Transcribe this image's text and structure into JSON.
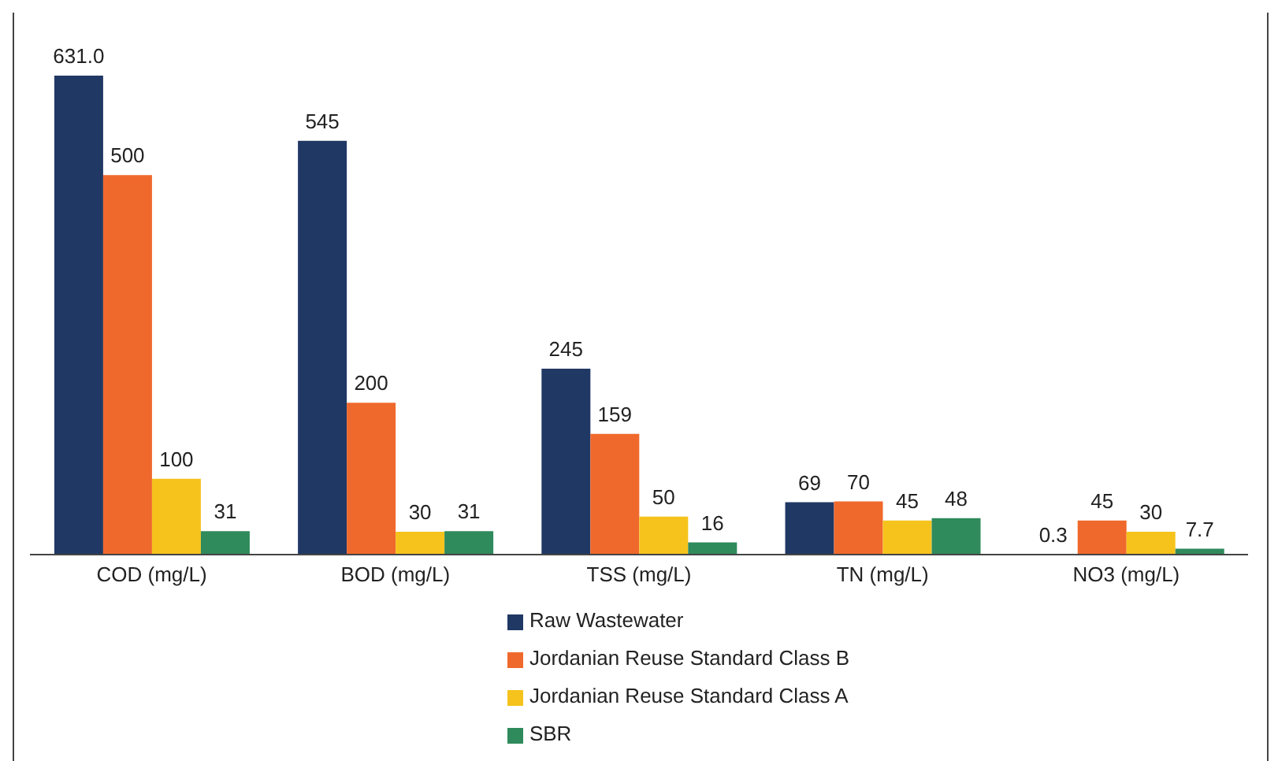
{
  "chart_data": {
    "type": "bar",
    "categories": [
      "COD (mg/L)",
      "BOD (mg/L)",
      "TSS (mg/L)",
      "TN (mg/L)",
      "NO3 (mg/L)"
    ],
    "series": [
      {
        "name": "Raw Wastewater",
        "color": "#203864",
        "values": [
          631.0,
          545,
          245,
          69,
          0.3
        ],
        "value_labels": [
          "631.0",
          "545",
          "245",
          "69",
          "0.3"
        ]
      },
      {
        "name": "Jordanian Reuse Standard Class B",
        "color": "#f0692c",
        "values": [
          500,
          200,
          159,
          70,
          45
        ],
        "value_labels": [
          "500",
          "200",
          "159",
          "70",
          "45"
        ]
      },
      {
        "name": "Jordanian Reuse Standard Class A",
        "color": "#f5c31c",
        "values": [
          100,
          30,
          50,
          45,
          30
        ],
        "value_labels": [
          "100",
          "30",
          "50",
          "45",
          "30"
        ]
      },
      {
        "name": "SBR",
        "color": "#2f8a5c",
        "values": [
          31,
          31,
          16,
          48,
          7.7
        ],
        "value_labels": [
          "31",
          "31",
          "16",
          "48",
          "7.7"
        ]
      }
    ],
    "legend": "bottom",
    "grid": false
  }
}
